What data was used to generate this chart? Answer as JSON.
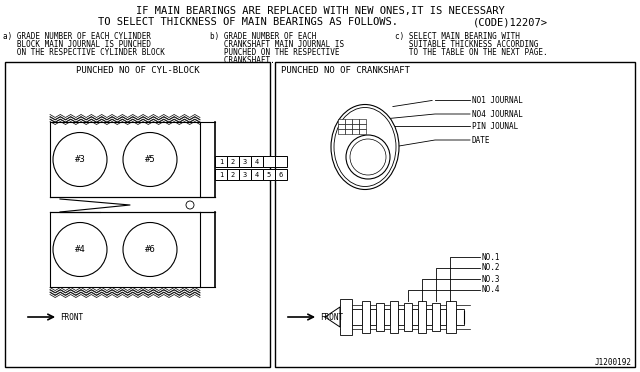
{
  "bg_color": "#ffffff",
  "line_color": "#000000",
  "title_line1": "IF MAIN BEARINGS ARE REPLACED WITH NEW ONES,IT IS NECESSARY",
  "title_line2": "TO SELECT THICKNESS OF MAIN BEARINGS AS FOLLOWS.",
  "title_code": "(CODE)12207>",
  "box1_title": "PUNCHED NO OF CYL-BLOCK",
  "box2_title": "PUNCHED NO OF CRANKSHAFT",
  "part_number": "J1200192",
  "font_size_title": 7.5,
  "font_size_label": 5.5,
  "font_size_box": 6.5
}
